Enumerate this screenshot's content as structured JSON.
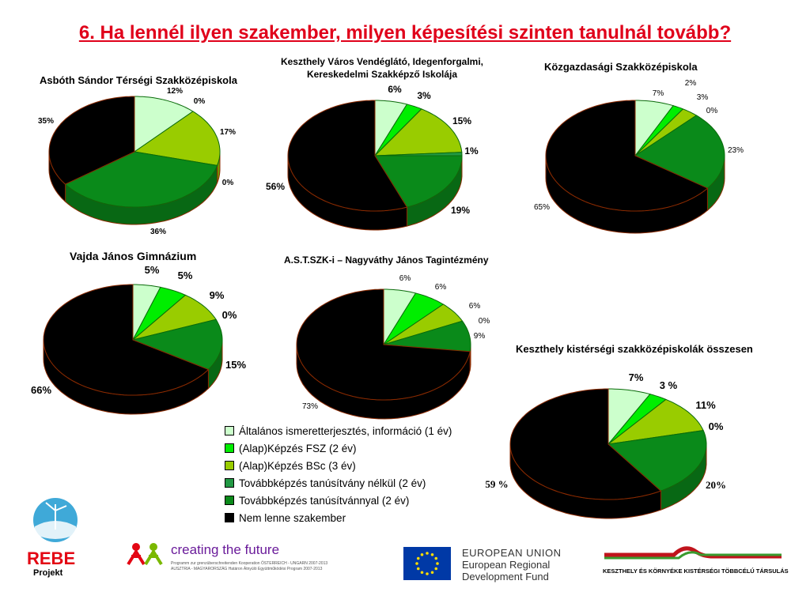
{
  "title": "6. Ha lennél ilyen szakember, milyen képesítési szinten tanulnál tovább?",
  "colors": [
    "#ccffcc",
    "#00ee00",
    "#99cc00",
    "#229944",
    "#0a8a1a",
    "#000000"
  ],
  "legend": {
    "items": [
      "Általános ismeretterjesztés, információ (1 év)",
      "(Alap)Képzés FSZ (2 év)",
      "(Alap)Képzés BSc (3 év)",
      "Továbbképzés tanúsítvány nélkül (2 év)",
      "Továbbképzés tanúsítvánnyal (2 év)",
      "Nem lenne szakember"
    ]
  },
  "chart_data": [
    {
      "type": "pie",
      "title": "Asbóth Sándor Térségi Szakközépiskola",
      "values": [
        12,
        0,
        17,
        0,
        36,
        35
      ],
      "labels": [
        "12%",
        "0%",
        "17%",
        "0%",
        "36%",
        "35%"
      ]
    },
    {
      "type": "pie",
      "title": "Keszthely Város Vendéglátó, Idegenforgalmi,\nKereskedelmi Szakképző Iskolája",
      "values": [
        6,
        3,
        15,
        1,
        19,
        56
      ],
      "labels": [
        "6%",
        "3%",
        "15%",
        "1%",
        "19%",
        "56%"
      ]
    },
    {
      "type": "pie",
      "title": "Közgazdasági Szakközépiskola",
      "values": [
        7,
        2,
        3,
        0,
        23,
        65
      ],
      "labels": [
        "7%",
        "2%",
        "3%",
        "0%",
        "23%",
        "65%"
      ]
    },
    {
      "type": "pie",
      "title": "Vajda János Gimnázium",
      "values": [
        5,
        5,
        9,
        0,
        15,
        66
      ],
      "labels": [
        "5%",
        "5%",
        "9%",
        "0%",
        "15%",
        "66%"
      ]
    },
    {
      "type": "pie",
      "title": "A.S.T.SZK-i – Nagyváthy János Tagintézmény",
      "values": [
        6,
        6,
        6,
        0,
        9,
        73
      ],
      "labels": [
        "6%",
        "6%",
        "6%",
        "0%",
        "9%",
        "73%"
      ]
    },
    {
      "type": "pie",
      "title": "Keszthely kistérségi szakközépiskolák összesen",
      "values": [
        7,
        3,
        11,
        0,
        20,
        59
      ],
      "labels": [
        "7%",
        "3 %",
        "11%",
        "0%",
        "20%",
        "59 %"
      ]
    }
  ],
  "logos": {
    "rebe_line1": "REBE",
    "rebe_line2": "Projekt",
    "ctf_title": "creating the future",
    "ctf_sub1": "Programm zur grenzüberschreitenden Kooperation ÖSTERREICH - UNGARN 2007-2013",
    "ctf_sub2": "AUSZTRIA - MAGYARORSZÁG Határon Átnyúló Együttműködési Program 2007-2013",
    "eu_line1": "EUROPEAN UNION",
    "eu_line2": "European Regional",
    "eu_line3": "Development Fund",
    "kt_text": "KESZTHELY ÉS KÖRNYÉKE KISTÉRSÉGI TÖBBCÉLÚ TÁRSULÁS"
  }
}
